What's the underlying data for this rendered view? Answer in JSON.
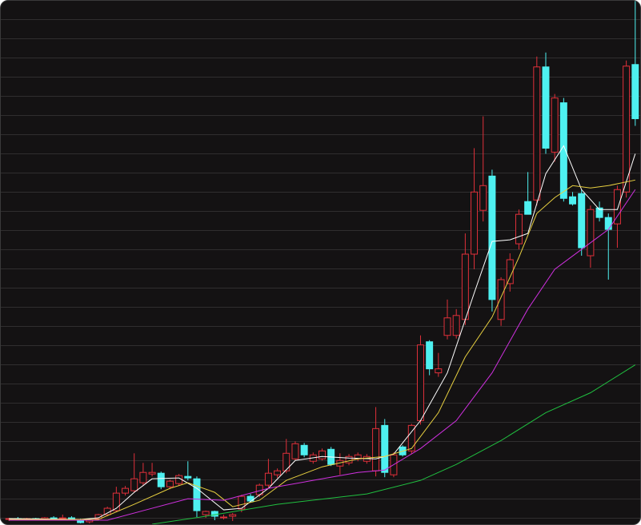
{
  "chart_data": {
    "type": "candlestick",
    "up_color": "#e0303a",
    "down_color": "#4ef0f0",
    "xlim": [
      0,
      70
    ],
    "ylim": [
      0,
      657
    ],
    "candles": [
      [
        6,
        8,
        4,
        7
      ],
      [
        7,
        9,
        5,
        6
      ],
      [
        6,
        8,
        5,
        7
      ],
      [
        7,
        8,
        5,
        6
      ],
      [
        6,
        9,
        5,
        8
      ],
      [
        8,
        10,
        6,
        7
      ],
      [
        7,
        12,
        5,
        8
      ],
      [
        8,
        10,
        6,
        7
      ],
      [
        6,
        7,
        1,
        2
      ],
      [
        3,
        6,
        1,
        5
      ],
      [
        7,
        13,
        5,
        12
      ],
      [
        12,
        22,
        10,
        20
      ],
      [
        17,
        47,
        15,
        39
      ],
      [
        39,
        48,
        36,
        45
      ],
      [
        42,
        89,
        40,
        57
      ],
      [
        52,
        77,
        48,
        65
      ],
      [
        63,
        77,
        60,
        65
      ],
      [
        64,
        66,
        44,
        47
      ],
      [
        47,
        56,
        44,
        54
      ],
      [
        51,
        63,
        48,
        61
      ],
      [
        60,
        79,
        55,
        58
      ],
      [
        57,
        60,
        9,
        17
      ],
      [
        12,
        17,
        8,
        16
      ],
      [
        16,
        17,
        5,
        10
      ],
      [
        9,
        12,
        6,
        9
      ],
      [
        10,
        14,
        4,
        12
      ],
      [
        19,
        37,
        15,
        35
      ],
      [
        35,
        38,
        28,
        29
      ],
      [
        37,
        51,
        34,
        49
      ],
      [
        49,
        82,
        46,
        64
      ],
      [
        62,
        70,
        58,
        67
      ],
      [
        67,
        107,
        64,
        89
      ],
      [
        82,
        104,
        80,
        101
      ],
      [
        99,
        102,
        84,
        87
      ],
      [
        79,
        90,
        76,
        87
      ],
      [
        82,
        95,
        80,
        92
      ],
      [
        94,
        97,
        73,
        75
      ],
      [
        73,
        89,
        62,
        80
      ],
      [
        77,
        88,
        74,
        85
      ],
      [
        82,
        90,
        79,
        87
      ],
      [
        79,
        88,
        76,
        85
      ],
      [
        67,
        147,
        60,
        120
      ],
      [
        124,
        132,
        59,
        65
      ],
      [
        62,
        90,
        59,
        87
      ],
      [
        97,
        99,
        85,
        87
      ],
      [
        92,
        126,
        88,
        124
      ],
      [
        130,
        237,
        125,
        225
      ],
      [
        229,
        231,
        187,
        195
      ],
      [
        190,
        215,
        185,
        195
      ],
      [
        237,
        282,
        232,
        259
      ],
      [
        237,
        270,
        233,
        262
      ],
      [
        257,
        365,
        250,
        339
      ],
      [
        339,
        472,
        320,
        417
      ],
      [
        394,
        512,
        380,
        425
      ],
      [
        437,
        445,
        267,
        282
      ],
      [
        257,
        310,
        249,
        307
      ],
      [
        302,
        340,
        292,
        332
      ],
      [
        352,
        395,
        345,
        389
      ],
      [
        405,
        442,
        395,
        389
      ],
      [
        407,
        587,
        400,
        574
      ],
      [
        574,
        592,
        465,
        472
      ],
      [
        467,
        540,
        455,
        535
      ],
      [
        529,
        535,
        405,
        409
      ],
      [
        411,
        417,
        400,
        402
      ],
      [
        415,
        420,
        337,
        347
      ],
      [
        337,
        400,
        322,
        395
      ],
      [
        397,
        405,
        380,
        385
      ],
      [
        385,
        390,
        307,
        370
      ],
      [
        377,
        425,
        347,
        420
      ],
      [
        417,
        582,
        410,
        575
      ],
      [
        577,
        657,
        500,
        509
      ]
    ],
    "lines": [
      {
        "color": "#ffffff",
        "x": [
          0,
          8,
          10,
          12,
          14,
          16,
          19,
          21,
          24,
          26,
          29,
          32,
          35,
          38,
          41,
          43,
          46,
          49,
          52,
          54,
          56,
          58,
          60,
          62,
          64,
          66,
          68,
          70
        ],
        "values": [
          7,
          6,
          8,
          20,
          40,
          57,
          58,
          45,
          18,
          20,
          45,
          80,
          85,
          83,
          82,
          88,
          130,
          190,
          290,
          355,
          357,
          365,
          440,
          475,
          420,
          395,
          395,
          465
        ]
      },
      {
        "color": "#e8d040",
        "x": [
          0,
          10,
          14,
          18,
          20,
          23,
          25,
          28,
          31,
          35,
          39,
          42,
          45,
          48,
          51,
          54,
          57,
          59,
          61,
          63,
          65,
          67,
          70
        ],
        "values": [
          6,
          6,
          25,
          45,
          52,
          40,
          22,
          30,
          55,
          72,
          82,
          85,
          95,
          140,
          210,
          260,
          335,
          390,
          410,
          425,
          422,
          425,
          432
        ]
      },
      {
        "color": "#d030e0",
        "x": [
          0,
          11,
          16,
          20,
          24,
          29,
          34,
          39,
          42,
          46,
          50,
          54,
          58,
          61,
          64,
          67,
          70
        ],
        "values": [
          5,
          5,
          20,
          32,
          30,
          45,
          55,
          65,
          68,
          95,
          130,
          190,
          270,
          320,
          345,
          370,
          420
        ]
      },
      {
        "color": "#20c040",
        "x": [
          16,
          22,
          30,
          40,
          46,
          50,
          55,
          60,
          65,
          70
        ],
        "values": [
          0,
          10,
          25,
          38,
          55,
          75,
          105,
          140,
          165,
          200
        ]
      }
    ]
  }
}
